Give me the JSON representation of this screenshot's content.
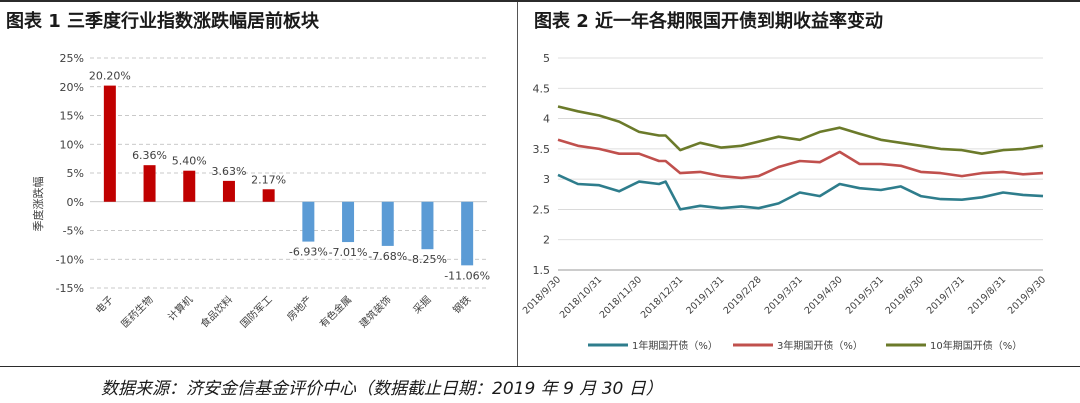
{
  "figure1": {
    "title": "图表 1 三季度行业指数涨跌幅居前板块",
    "chart_data": {
      "type": "bar",
      "ylabel": "季度涨跌幅",
      "xlabel": "",
      "ylim": [
        -15,
        25
      ],
      "yticks": [
        "-15%",
        "-10%",
        "-5%",
        "0%",
        "5%",
        "10%",
        "15%",
        "20%",
        "25%"
      ],
      "ytick_values": [
        -15,
        -10,
        -5,
        0,
        5,
        10,
        15,
        20,
        25
      ],
      "categories": [
        "电子",
        "医药生物",
        "计算机",
        "食品饮料",
        "国防军工",
        "房地产",
        "有色金属",
        "建筑装饰",
        "采掘",
        "钢铁"
      ],
      "values": [
        20.2,
        6.36,
        5.4,
        3.63,
        2.17,
        -6.93,
        -7.01,
        -7.68,
        -8.25,
        -11.06
      ],
      "value_labels": [
        "20.20%",
        "6.36%",
        "5.40%",
        "3.63%",
        "2.17%",
        "-6.93%",
        "-7.01%",
        "-7.68%",
        "-8.25%",
        "-11.06%"
      ],
      "positive_color": "#c00000",
      "negative_color": "#5b9bd5",
      "grid": "horizontal-dashed"
    }
  },
  "figure2": {
    "title": "图表 2 近一年各期限国开债到期收益率变动",
    "chart_data": {
      "type": "line",
      "ylim": [
        1.5,
        5
      ],
      "yticks": [
        "1.5",
        "2",
        "2.5",
        "3",
        "3.5",
        "4",
        "4.5",
        "5"
      ],
      "ytick_values": [
        1.5,
        2,
        2.5,
        3,
        3.5,
        4,
        4.5,
        5
      ],
      "x_ticks": [
        "2018/9/30",
        "2018/10/31",
        "2018/11/30",
        "2018/12/31",
        "2019/1/31",
        "2019/2/28",
        "2019/3/31",
        "2019/4/30",
        "2019/5/31",
        "2019/6/30",
        "2019/7/31",
        "2019/8/31",
        "2019/9/30"
      ],
      "x": [
        "2018/9/30",
        "2018/10/15",
        "2018/10/31",
        "2018/11/15",
        "2018/11/30",
        "2018/12/15",
        "2018/12/20",
        "2018/12/31",
        "2019/1/15",
        "2019/1/31",
        "2019/2/15",
        "2019/2/28",
        "2019/3/15",
        "2019/3/31",
        "2019/4/15",
        "2019/4/30",
        "2019/5/15",
        "2019/5/31",
        "2019/6/15",
        "2019/6/30",
        "2019/7/15",
        "2019/7/31",
        "2019/8/15",
        "2019/8/31",
        "2019/9/15",
        "2019/9/30"
      ],
      "series": [
        {
          "name": "1年期国开债（%）",
          "color": "#2e7d8c",
          "values": [
            3.07,
            2.92,
            2.9,
            2.8,
            2.96,
            2.92,
            2.96,
            2.5,
            2.56,
            2.52,
            2.55,
            2.52,
            2.6,
            2.78,
            2.72,
            2.92,
            2.85,
            2.82,
            2.88,
            2.72,
            2.67,
            2.66,
            2.7,
            2.78,
            2.74,
            2.72
          ]
        },
        {
          "name": "3年期国开债（%）",
          "color": "#c0504d",
          "values": [
            3.65,
            3.55,
            3.5,
            3.42,
            3.42,
            3.3,
            3.3,
            3.1,
            3.12,
            3.05,
            3.02,
            3.05,
            3.2,
            3.3,
            3.28,
            3.45,
            3.25,
            3.25,
            3.22,
            3.12,
            3.1,
            3.05,
            3.1,
            3.12,
            3.08,
            3.1
          ]
        },
        {
          "name": "10年期国开债（%）",
          "color": "#6b7a2a",
          "values": [
            4.2,
            4.12,
            4.05,
            3.95,
            3.78,
            3.72,
            3.72,
            3.48,
            3.6,
            3.52,
            3.55,
            3.62,
            3.7,
            3.65,
            3.78,
            3.85,
            3.75,
            3.65,
            3.6,
            3.55,
            3.5,
            3.48,
            3.42,
            3.48,
            3.5,
            3.55
          ]
        }
      ],
      "legend_position": "bottom",
      "grid": "horizontal"
    }
  },
  "source_note": "数据来源：济安金信基金评价中心（数据截止日期：2019 年 9 月 30 日）"
}
